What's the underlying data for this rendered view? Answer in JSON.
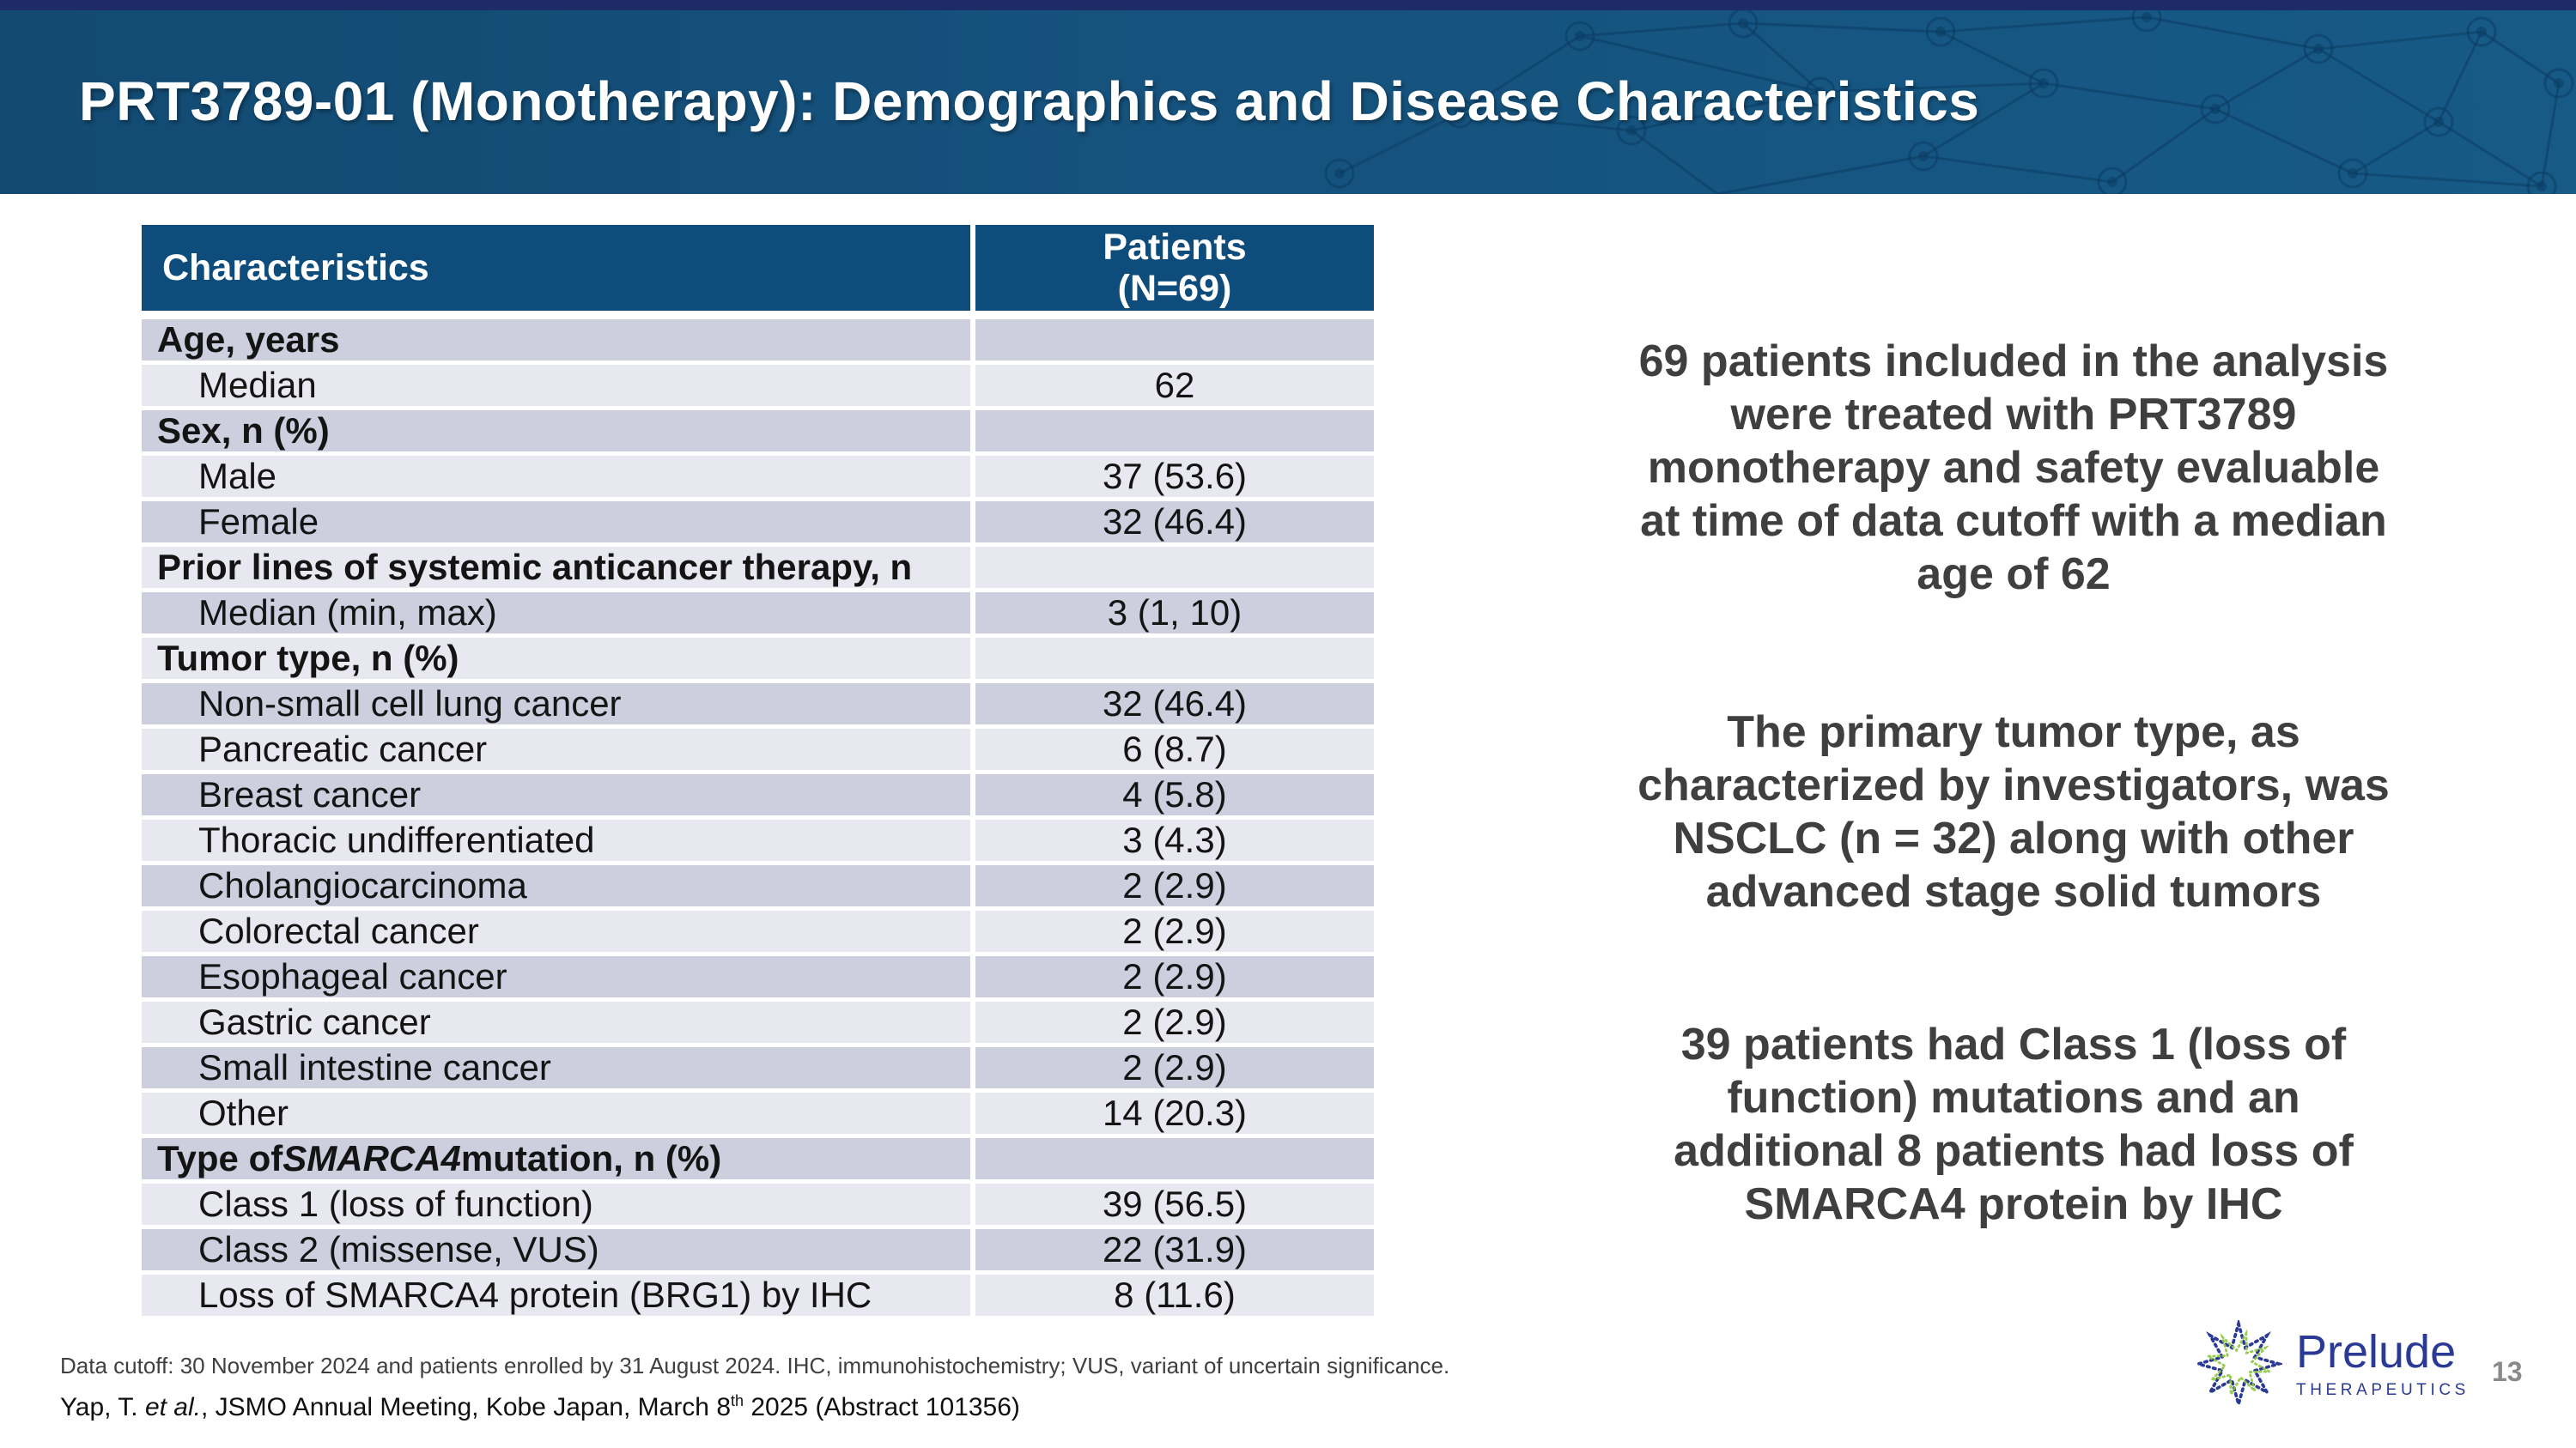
{
  "header": {
    "title": "PRT3789-01 (Monotherapy): Demographics and Disease Characteristics"
  },
  "table": {
    "columns": {
      "col1": "Characteristics",
      "col2_line1": "Patients",
      "col2_line2": "(N=69)"
    },
    "rows": [
      {
        "label": "Age, years",
        "value": "",
        "category": true
      },
      {
        "label": "Median",
        "value": "62",
        "category": false
      },
      {
        "label": "Sex, n (%)",
        "value": "",
        "category": true
      },
      {
        "label": "Male",
        "value": "37 (53.6)",
        "category": false
      },
      {
        "label": "Female",
        "value": "32 (46.4)",
        "category": false
      },
      {
        "label": "Prior lines of systemic anticancer therapy, n",
        "value": "",
        "category": true
      },
      {
        "label": "Median (min, max)",
        "value": "3 (1, 10)",
        "category": false
      },
      {
        "label": "Tumor type, n (%)",
        "value": "",
        "category": true
      },
      {
        "label": "Non-small cell lung cancer",
        "value": "32 (46.4)",
        "category": false
      },
      {
        "label": "Pancreatic cancer",
        "value": "6 (8.7)",
        "category": false
      },
      {
        "label": "Breast cancer",
        "value": "4 (5.8)",
        "category": false
      },
      {
        "label": "Thoracic undifferentiated",
        "value": "3 (4.3)",
        "category": false
      },
      {
        "label": "Cholangiocarcinoma",
        "value": "2 (2.9)",
        "category": false
      },
      {
        "label": "Colorectal cancer",
        "value": "2 (2.9)",
        "category": false
      },
      {
        "label": "Esophageal cancer",
        "value": "2 (2.9)",
        "category": false
      },
      {
        "label": "Gastric cancer",
        "value": "2 (2.9)",
        "category": false
      },
      {
        "label": "Small intestine cancer",
        "value": "2 (2.9)",
        "category": false
      },
      {
        "label": "Other",
        "value": "14 (20.3)",
        "category": false
      },
      {
        "label": "Type of SMARCA4 mutation, n (%)",
        "value": "",
        "category": true,
        "italic_word": "SMARCA4"
      },
      {
        "label": "Class 1 (loss of function)",
        "value": "39 (56.5)",
        "category": false
      },
      {
        "label": "Class 2 (missense, VUS)",
        "value": "22 (31.9)",
        "category": false
      },
      {
        "label": "Loss of SMARCA4 protein (BRG1) by IHC",
        "value": "8 (11.6)",
        "category": false
      }
    ]
  },
  "right_panel": {
    "paragraphs": [
      "69 patients included in the analysis\nwere treated with PRT3789\nmonotherapy and safety evaluable\nat time of data cutoff with a median\nage of 62",
      "The primary tumor type, as\ncharacterized by investigators, was\nNSCLC (n = 32) along with other\nadvanced stage solid tumors",
      "39 patients had Class 1 (loss of\nfunction) mutations and an\nadditional 8 patients had loss of\nSMARCA4 protein by IHC"
    ]
  },
  "footer": {
    "footnote": "Data cutoff: 30 November 2024 and patients enrolled by 31 August 2024.  IHC, immunohistochemistry; VUS, variant of uncertain significance.",
    "citation_prefix": "Yap, T. ",
    "citation_italic": "et al.",
    "citation_mid": ", JSMO Annual Meeting, Kobe Japan, March 8",
    "citation_sup": "th",
    "citation_suffix": " 2025 (Abstract 101356)"
  },
  "logo": {
    "brand": "Prelude",
    "brand_sub": "THERAPEUTICS",
    "icon": "starburst-dotted-icon"
  },
  "page_number": "13",
  "colors": {
    "stripe_navy": "#1d2b66",
    "banner_blue": "#15527d",
    "banner_blue_dark": "#124a72",
    "banner_blue_light": "#175a86",
    "banner_pattern": "#0a3a60",
    "table_header_blue": "#0e4c7c",
    "row_dark": "#cdcede",
    "row_light": "#e8e8f1",
    "body_text": "#141414",
    "panel_text": "#3f3f3f",
    "footnote_text": "#404040",
    "logo_navy": "#2b3a94",
    "logo_green": "#8dc63f",
    "page_gray": "#8a8a8a"
  }
}
